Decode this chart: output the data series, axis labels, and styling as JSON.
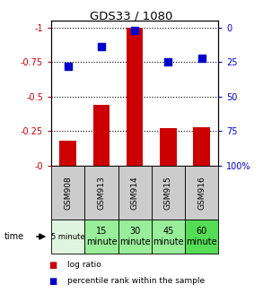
{
  "title": "GDS33 / 1080",
  "samples": [
    "GSM908",
    "GSM913",
    "GSM914",
    "GSM915",
    "GSM916"
  ],
  "time_labels_row1": [
    "5 minute",
    "15",
    "30",
    "45",
    "60"
  ],
  "time_labels_row2": [
    "",
    "minute",
    "minute",
    "minute",
    "minute"
  ],
  "time_colors": [
    "#d4f0d4",
    "#90e890",
    "#90e890",
    "#90e890",
    "#66dd66"
  ],
  "log_ratios": [
    -0.18,
    -0.44,
    -1.0,
    -0.27,
    -0.28
  ],
  "percentile_ranks": [
    28,
    14,
    2,
    25,
    22
  ],
  "ylim_left": [
    0,
    -1.05
  ],
  "ylim_right": [
    100,
    -5
  ],
  "yticks_left": [
    0,
    -0.25,
    -0.5,
    -0.75,
    -1.0
  ],
  "yticks_right": [
    100,
    75,
    50,
    25,
    0
  ],
  "ytick_labels_left": [
    "-0",
    "-0.25",
    "-0.5",
    "-0.75",
    "-1"
  ],
  "ytick_labels_right": [
    "100%",
    "75",
    "50",
    "25",
    "0"
  ],
  "bar_color": "#cc0000",
  "dot_color": "#0000cc",
  "bar_width": 0.5,
  "dot_size": 40,
  "bg_color": "#ffffff",
  "sample_bg": "#cccccc",
  "left_tick_color": "#cc0000",
  "right_tick_color": "#0000cc",
  "time_colors_detail": [
    "#e0f5e0",
    "#aaeaaa",
    "#aaeaaa",
    "#aaeaaa",
    "#55dd55"
  ]
}
